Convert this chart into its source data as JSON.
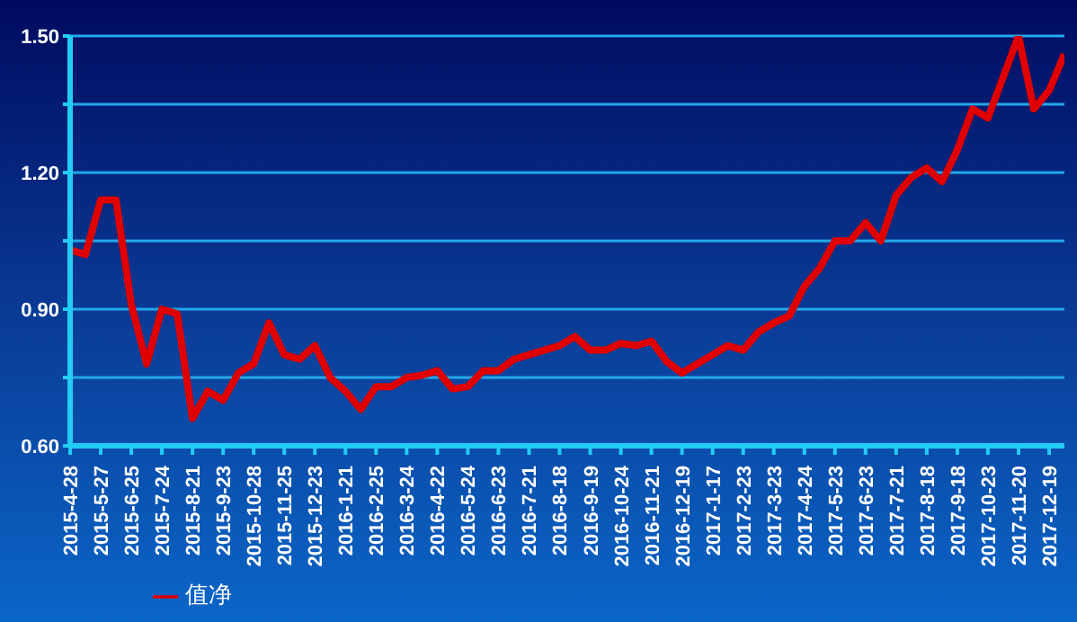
{
  "chart_data": {
    "type": "line",
    "categories": [
      "2015-4-28",
      null,
      "2015-5-27",
      null,
      "2015-6-25",
      null,
      "2015-7-24",
      null,
      "2015-8-21",
      null,
      "2015-9-23",
      null,
      "2015-10-28",
      null,
      "2015-11-25",
      null,
      "2015-12-23",
      null,
      "2016-1-21",
      null,
      "2016-2-25",
      null,
      "2016-3-24",
      null,
      "2016-4-22",
      null,
      "2016-5-24",
      null,
      "2016-6-23",
      null,
      "2016-7-21",
      null,
      "2016-8-18",
      null,
      "2016-9-19",
      null,
      "2016-10-24",
      null,
      "2016-11-21",
      null,
      "2016-12-19",
      null,
      "2017-1-17",
      null,
      "2017-2-23",
      null,
      "2017-3-23",
      null,
      "2017-4-24",
      null,
      "2017-5-23",
      null,
      "2017-6-23",
      null,
      "2017-7-21",
      null,
      "2017-8-18",
      null,
      "2017-9-18",
      null,
      "2017-10-23",
      null,
      "2017-11-20",
      null,
      "2017-12-19",
      null
    ],
    "series": [
      {
        "name": "值净",
        "color": "#e00000",
        "values": [
          1.03,
          1.02,
          1.14,
          1.14,
          0.91,
          0.78,
          0.9,
          0.89,
          0.66,
          0.72,
          0.7,
          0.76,
          0.78,
          0.87,
          0.8,
          0.79,
          0.82,
          0.75,
          0.72,
          0.68,
          0.73,
          0.73,
          0.75,
          0.755,
          0.765,
          0.725,
          0.73,
          0.765,
          0.765,
          0.79,
          0.8,
          0.81,
          0.82,
          0.84,
          0.81,
          0.81,
          0.825,
          0.82,
          0.83,
          0.785,
          0.76,
          0.78,
          0.8,
          0.82,
          0.81,
          0.85,
          0.87,
          0.885,
          0.95,
          0.99,
          1.05,
          1.05,
          1.09,
          1.05,
          1.15,
          1.19,
          1.21,
          1.18,
          1.25,
          1.34,
          1.32,
          1.41,
          1.5,
          1.34,
          1.38,
          1.46
        ]
      }
    ],
    "ylim": [
      0.6,
      1.5
    ],
    "yticks": [
      {
        "value": 0.6,
        "label": "0.60"
      },
      {
        "value": 0.75,
        "label": null
      },
      {
        "value": 0.9,
        "label": "0.90"
      },
      {
        "value": 1.05,
        "label": null
      },
      {
        "value": 1.2,
        "label": "1.20"
      },
      {
        "value": 1.35,
        "label": null
      },
      {
        "value": 1.5,
        "label": "1.50"
      }
    ],
    "grid": "y",
    "legend": "bottom left",
    "marker": "none",
    "line_style": "solid"
  }
}
